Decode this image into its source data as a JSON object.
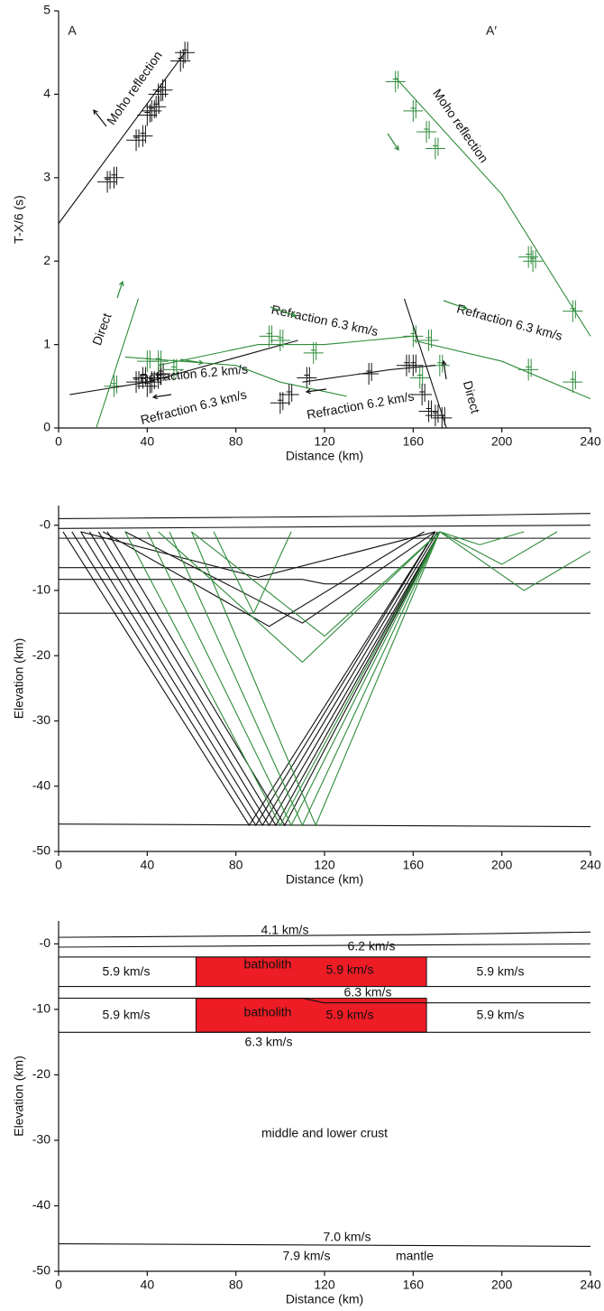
{
  "chart_data": [
    {
      "type": "scatter",
      "xlabel": "Distance (km)",
      "ylabel": "T-X/6 (s)",
      "xlim": [
        0,
        240
      ],
      "xticks": [
        0,
        40,
        80,
        120,
        160,
        200,
        240
      ],
      "ylim": [
        0,
        5
      ],
      "yticks": [
        0,
        1,
        2,
        3,
        4,
        5
      ],
      "series": [
        {
          "mode": "markers",
          "color": "#111111",
          "x": [
            22,
            25,
            35,
            38,
            40,
            42,
            44,
            45,
            47,
            55,
            57,
            35,
            38,
            42,
            45,
            40,
            46,
            100,
            104,
            112,
            140,
            157,
            160,
            164,
            167,
            170,
            173
          ],
          "values": [
            2.95,
            3.0,
            3.45,
            3.5,
            3.75,
            3.8,
            3.85,
            4.0,
            4.05,
            4.4,
            4.5,
            0.55,
            0.6,
            0.55,
            0.6,
            0.5,
            0.65,
            0.3,
            0.4,
            0.6,
            0.65,
            0.75,
            0.75,
            0.4,
            0.2,
            0.15,
            0.12
          ]
        },
        {
          "mode": "markers",
          "color": "#2e8b3a",
          "x": [
            152,
            160,
            166,
            170,
            212,
            214,
            232,
            212,
            232,
            25,
            40,
            45,
            52,
            95,
            100,
            115,
            160,
            167,
            172,
            163
          ],
          "values": [
            4.15,
            3.8,
            3.55,
            3.35,
            2.05,
            2.0,
            1.4,
            0.7,
            0.55,
            0.5,
            0.8,
            0.8,
            0.7,
            1.1,
            1.05,
            0.9,
            1.1,
            1.05,
            0.75,
            0.6
          ]
        },
        {
          "mode": "lines",
          "color": "#111111",
          "x": [
            0,
            57
          ],
          "values": [
            2.45,
            4.5
          ]
        },
        {
          "mode": "lines",
          "color": "#111111",
          "x": [
            5,
            40,
            108
          ],
          "values": [
            0.4,
            0.55,
            1.05
          ]
        },
        {
          "mode": "lines",
          "color": "#111111",
          "x": [
            110,
            150,
            170
          ],
          "values": [
            0.55,
            0.7,
            0.75
          ]
        },
        {
          "mode": "lines",
          "color": "#111111",
          "x": [
            156,
            175
          ],
          "values": [
            1.55,
            0
          ]
        },
        {
          "mode": "lines",
          "color": "#2e8b3a",
          "x": [
            152,
            200,
            240
          ],
          "values": [
            4.2,
            2.8,
            1.1
          ]
        },
        {
          "mode": "lines",
          "color": "#2e8b3a",
          "x": [
            17,
            36
          ],
          "values": [
            0,
            1.55
          ]
        },
        {
          "mode": "lines",
          "color": "#2e8b3a",
          "x": [
            30,
            80,
            100,
            130
          ],
          "values": [
            0.85,
            0.75,
            0.55,
            0.38
          ]
        },
        {
          "mode": "lines",
          "color": "#2e8b3a",
          "x": [
            160,
            200,
            240
          ],
          "values": [
            1.05,
            0.8,
            0.35
          ]
        },
        {
          "mode": "lines",
          "color": "#2e8b3a",
          "x": [
            45,
            90,
            120,
            160
          ],
          "values": [
            0.75,
            1.0,
            1.0,
            1.1
          ]
        }
      ],
      "annotations": [
        {
          "text": "A",
          "color": "#111111"
        },
        {
          "text": "A′",
          "color": "#111111"
        },
        {
          "text": "Moho reflection",
          "color": "#111111"
        },
        {
          "text": "Moho reflection",
          "color": "#2e8b3a"
        },
        {
          "text": "Direct",
          "color": "#2e8b3a"
        },
        {
          "text": "Refraction 6.2 km/s",
          "color": "#2e8b3a"
        },
        {
          "text": "Refraction 6.3 km/s",
          "color": "#111111"
        },
        {
          "text": "Refraction 6.3 km/s",
          "color": "#2e8b3a"
        },
        {
          "text": "Refraction 6.2 km/s",
          "color": "#111111"
        },
        {
          "text": "Refraction 6.3 km/s",
          "color": "#2e8b3a"
        },
        {
          "text": "Direct",
          "color": "#111111"
        }
      ]
    },
    {
      "type": "line",
      "xlabel": "Distance (km)",
      "ylabel": "Elevation (km)",
      "xlim": [
        0,
        240
      ],
      "xticks": [
        0,
        40,
        80,
        120,
        160,
        200,
        240
      ],
      "ylim": [
        -50,
        3
      ],
      "yticks": [
        {
          "value": 0,
          "label": "-0"
        },
        -10,
        -20,
        -30,
        -40,
        -50
      ],
      "series": [
        {
          "color": "#111111",
          "x": [
            0,
            40,
            80,
            120,
            160,
            200,
            240
          ],
          "values": [
            1.0,
            1.1,
            1.2,
            1.3,
            1.4,
            1.6,
            1.8
          ]
        },
        {
          "color": "#111111",
          "x": [
            0,
            240
          ],
          "values": [
            -0.5,
            0
          ]
        },
        {
          "color": "#111111",
          "x": [
            0,
            240
          ],
          "values": [
            -2,
            -2
          ]
        },
        {
          "color": "#111111",
          "x": [
            0,
            240
          ],
          "values": [
            -6.5,
            -6.5
          ]
        },
        {
          "color": "#111111",
          "x": [
            0,
            110,
            120,
            240
          ],
          "values": [
            -8.3,
            -8.3,
            -9,
            -9
          ]
        },
        {
          "color": "#111111",
          "x": [
            0,
            240
          ],
          "values": [
            -13.5,
            -13.5
          ]
        },
        {
          "color": "#111111",
          "x": [
            0,
            240
          ],
          "values": [
            -45.8,
            -46.2
          ]
        },
        {
          "color": "#111111",
          "x": [
            2,
            86,
            170
          ],
          "values": [
            -1,
            -46,
            -1
          ]
        },
        {
          "color": "#111111",
          "x": [
            6,
            89,
            170
          ],
          "values": [
            -1,
            -46,
            -1
          ]
        },
        {
          "color": "#111111",
          "x": [
            10,
            92,
            171
          ],
          "values": [
            -1,
            -46,
            -1
          ]
        },
        {
          "color": "#111111",
          "x": [
            14,
            95,
            172
          ],
          "values": [
            -1,
            -46,
            -1
          ]
        },
        {
          "color": "#111111",
          "x": [
            18,
            98,
            172
          ],
          "values": [
            -1,
            -46,
            -1
          ]
        },
        {
          "color": "#111111",
          "x": [
            22,
            102,
            172
          ],
          "values": [
            -1,
            -46,
            -1
          ]
        },
        {
          "color": "#111111",
          "x": [
            20,
            95,
            165
          ],
          "values": [
            -1,
            -15.5,
            -1
          ]
        },
        {
          "color": "#111111",
          "x": [
            30,
            110,
            170
          ],
          "values": [
            -1,
            -15,
            -1
          ]
        },
        {
          "color": "#111111",
          "x": [
            10,
            90,
            170
          ],
          "values": [
            -1,
            -8,
            -1
          ]
        },
        {
          "color": "#2e8b3a",
          "x": [
            172,
            100,
            30
          ],
          "values": [
            -1,
            -46,
            -1
          ]
        },
        {
          "color": "#2e8b3a",
          "x": [
            172,
            105,
            40
          ],
          "values": [
            -1,
            -46,
            -1
          ]
        },
        {
          "color": "#2e8b3a",
          "x": [
            172,
            110,
            50
          ],
          "values": [
            -1,
            -46,
            -1
          ]
        },
        {
          "color": "#2e8b3a",
          "x": [
            172,
            116,
            60
          ],
          "values": [
            -1,
            -46,
            -1
          ]
        },
        {
          "color": "#2e8b3a",
          "x": [
            45,
            110,
            172
          ],
          "values": [
            -1,
            -21,
            -1
          ]
        },
        {
          "color": "#2e8b3a",
          "x": [
            60,
            120,
            172
          ],
          "values": [
            -1,
            -17,
            -1
          ]
        },
        {
          "color": "#2e8b3a",
          "x": [
            70,
            88,
            105
          ],
          "values": [
            -1,
            -13.5,
            -1
          ]
        },
        {
          "color": "#2e8b3a",
          "x": [
            172,
            200,
            225
          ],
          "values": [
            -1,
            -6,
            -1
          ]
        },
        {
          "color": "#2e8b3a",
          "x": [
            172,
            210,
            240
          ],
          "values": [
            -1,
            -10,
            -4
          ]
        },
        {
          "color": "#2e8b3a",
          "x": [
            172,
            190,
            210
          ],
          "values": [
            -1,
            -3,
            -1
          ]
        }
      ]
    },
    {
      "type": "line",
      "xlabel": "Distance (km)",
      "ylabel": "Elevation (km)",
      "xlim": [
        0,
        240
      ],
      "xticks": [
        0,
        40,
        80,
        120,
        160,
        200,
        240
      ],
      "ylim": [
        -50,
        3.5
      ],
      "yticks": [
        {
          "value": 0,
          "label": "-0"
        },
        -10,
        -20,
        -30,
        -40,
        -50
      ],
      "regions": [
        {
          "color": "#ee1c25",
          "xlim": [
            62,
            166
          ],
          "ylim": [
            -6.5,
            -2
          ]
        },
        {
          "color": "#ee1c25",
          "xlim": [
            62,
            166
          ],
          "ylim": [
            -13.5,
            -8.3
          ]
        }
      ],
      "series": [
        {
          "color": "#111111",
          "x": [
            0,
            40,
            80,
            120,
            160,
            200,
            240
          ],
          "values": [
            1.0,
            1.1,
            1.2,
            1.3,
            1.4,
            1.6,
            1.8
          ]
        },
        {
          "color": "#111111",
          "x": [
            0,
            240
          ],
          "values": [
            -0.5,
            0
          ]
        },
        {
          "color": "#111111",
          "x": [
            0,
            240
          ],
          "values": [
            -2,
            -2
          ]
        },
        {
          "color": "#111111",
          "x": [
            0,
            240
          ],
          "values": [
            -6.5,
            -6.5
          ]
        },
        {
          "color": "#111111",
          "x": [
            0,
            110,
            120,
            240
          ],
          "values": [
            -8.3,
            -8.3,
            -9,
            -9
          ]
        },
        {
          "color": "#111111",
          "x": [
            0,
            240
          ],
          "values": [
            -13.5,
            -13.5
          ]
        },
        {
          "color": "#111111",
          "x": [
            0,
            240
          ],
          "values": [
            -45.8,
            -46.2
          ]
        }
      ],
      "annotations": [
        {
          "text": "4.1 km/s",
          "color": "#111111"
        },
        {
          "text": "6.2 km/s",
          "color": "#111111"
        },
        {
          "text": "5.9 km/s",
          "color": "#111111"
        },
        {
          "text": "batholith",
          "color": "#111111"
        },
        {
          "text": "5.9 km/s",
          "color": "#111111"
        },
        {
          "text": "5.9 km/s",
          "color": "#111111"
        },
        {
          "text": "6.3 km/s",
          "color": "#111111"
        },
        {
          "text": "5.9 km/s",
          "color": "#111111"
        },
        {
          "text": "batholith",
          "color": "#111111"
        },
        {
          "text": "5.9 km/s",
          "color": "#111111"
        },
        {
          "text": "5.9 km/s",
          "color": "#111111"
        },
        {
          "text": "6.3 km/s",
          "color": "#111111"
        },
        {
          "text": "middle and lower crust",
          "color": "#111111"
        },
        {
          "text": "7.0 km/s",
          "color": "#111111"
        },
        {
          "text": "7.9 km/s",
          "color": "#111111"
        },
        {
          "text": "mantle",
          "color": "#111111"
        }
      ]
    }
  ]
}
